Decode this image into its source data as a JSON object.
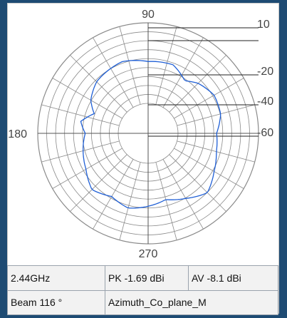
{
  "colors": {
    "background": "#1e4b73",
    "grid": "#8a8a8a",
    "pattern": "#1f5fd6",
    "table_bg": "#f2f2f2"
  },
  "chart_data": {
    "type": "polar-line",
    "angle_labels": [
      "90",
      "180",
      "270"
    ],
    "radial_labels": [
      "10",
      "-20",
      "-40",
      "-60"
    ],
    "series": [
      {
        "angles_deg": [
          0,
          15,
          30,
          45,
          55,
          70,
          90,
          110,
          135,
          150,
          160,
          170,
          180,
          195,
          210,
          225,
          240,
          255,
          270,
          285,
          300,
          315,
          330,
          345
        ],
        "values": [
          0.62,
          0.68,
          0.69,
          0.64,
          0.58,
          0.66,
          0.65,
          0.69,
          0.66,
          0.6,
          0.52,
          0.62,
          0.57,
          0.61,
          0.65,
          0.72,
          0.66,
          0.7,
          0.66,
          0.62,
          0.68,
          0.76,
          0.69,
          0.64
        ]
      }
    ]
  },
  "info": {
    "frequency": "2.44GHz",
    "peak": "PK -1.69 dBi",
    "average": "AV -8.1 dBi",
    "beam": "Beam 116 °",
    "plane": "Azimuth_Co_plane_M"
  }
}
